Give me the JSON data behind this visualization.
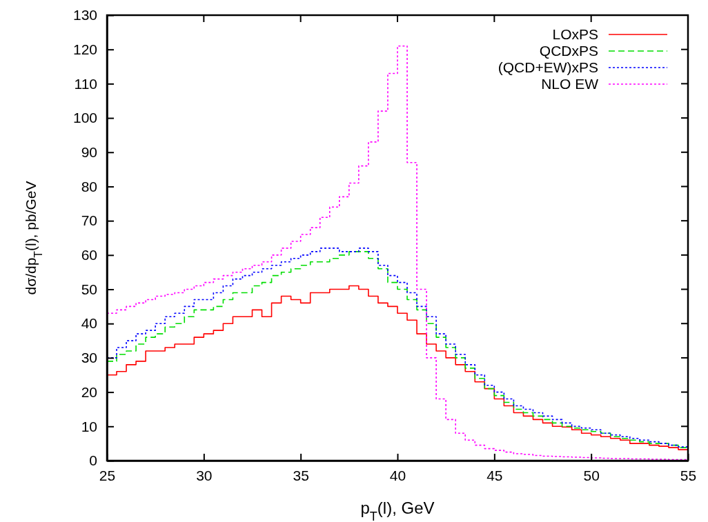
{
  "chart_data": {
    "type": "histogram",
    "xlabel": "p$_{T}$(l), GeV",
    "ylabel": "dσ/dp$_{T}$(l), pb/GeV",
    "bins": [
      25,
      25.5,
      26,
      26.5,
      27,
      27.5,
      28,
      28.5,
      29,
      29.5,
      30,
      30.5,
      31,
      31.5,
      32,
      32.5,
      33,
      33.5,
      34,
      34.5,
      35,
      35.5,
      36,
      36.5,
      37,
      37.5,
      38,
      38.5,
      39,
      39.5,
      40,
      40.5,
      41,
      41.5,
      42,
      42.5,
      43,
      43.5,
      44,
      44.5,
      45,
      45.5,
      46,
      46.5,
      47,
      47.5,
      48,
      48.5,
      49,
      49.5,
      50,
      50.5,
      51,
      51.5,
      52,
      52.5,
      53,
      53.5,
      54,
      54.5,
      55
    ],
    "series": [
      {
        "name": "LOxPS",
        "color": "#ff0000",
        "line_style": "solid",
        "values": [
          25,
          26,
          28,
          29,
          32,
          32,
          33,
          34,
          34,
          36,
          37,
          38,
          40,
          42,
          42,
          44,
          42,
          46,
          48,
          47,
          46,
          49,
          49,
          50,
          50,
          51,
          50,
          48,
          46,
          45,
          43,
          41,
          37,
          34,
          32,
          30,
          28,
          26,
          23,
          21,
          18,
          16,
          14,
          13,
          12,
          11,
          10,
          9.8,
          9,
          8,
          7.5,
          7,
          6.5,
          6,
          5,
          5,
          4.5,
          4.2,
          3.8,
          3.2
        ]
      },
      {
        "name": "QCDxPS",
        "color": "#00dd00",
        "line_style": "dashed",
        "values": [
          29,
          31,
          32,
          34,
          36,
          37,
          39,
          40,
          42,
          44,
          44,
          45,
          47,
          49,
          49,
          51,
          52,
          54,
          55,
          56,
          57,
          58,
          58,
          59,
          60,
          61,
          61,
          59,
          56,
          52,
          50,
          47,
          44,
          40,
          36,
          33,
          30,
          27,
          24,
          21,
          19,
          17,
          15,
          14,
          13,
          12,
          11,
          10,
          9.5,
          9,
          8.5,
          8,
          7,
          6.5,
          6,
          5.5,
          5,
          5,
          4.5,
          3.8
        ]
      },
      {
        "name": "(QCD+EW)xPS",
        "color": "#0000ff",
        "line_style": "dotted",
        "values": [
          30,
          33,
          35,
          37,
          38,
          40,
          42,
          43,
          45,
          47,
          47,
          49,
          51,
          53,
          54,
          55,
          56,
          57,
          58,
          59,
          60,
          61,
          62,
          62,
          61,
          61,
          62,
          61,
          57,
          54,
          52,
          49,
          45,
          42,
          37,
          34,
          31,
          28,
          25,
          22,
          20,
          18,
          16,
          15,
          14,
          13,
          12,
          11,
          10,
          9.5,
          9,
          8,
          7.5,
          7,
          6.5,
          6,
          5.5,
          5,
          4.5,
          4
        ]
      },
      {
        "name": "NLO EW",
        "color": "#ff00ff",
        "line_style": "dotted",
        "values": [
          43,
          44,
          45,
          46,
          47,
          48,
          48.5,
          49,
          50,
          51,
          52,
          53,
          54,
          55,
          56,
          57,
          58,
          60,
          62,
          64,
          66,
          68,
          71,
          74,
          77,
          81,
          86,
          93,
          102,
          113,
          121,
          87,
          50,
          30,
          18,
          12,
          8,
          6,
          4.5,
          3.5,
          3,
          2.5,
          2,
          1.8,
          1.5,
          1.3,
          1.2,
          1.1,
          1,
          0.9,
          0.8,
          0.7,
          0.6,
          0.6,
          0.5,
          0.5,
          0.4,
          0.4,
          0.3,
          0.3
        ]
      }
    ],
    "xlim": [
      25,
      55
    ],
    "xticks": [
      25,
      30,
      35,
      40,
      45,
      50,
      55
    ],
    "ylim": [
      0,
      130
    ],
    "yticks": [
      0,
      10,
      20,
      30,
      40,
      50,
      60,
      70,
      80,
      90,
      100,
      110,
      120,
      130
    ],
    "legend": "top right",
    "grid": false
  }
}
